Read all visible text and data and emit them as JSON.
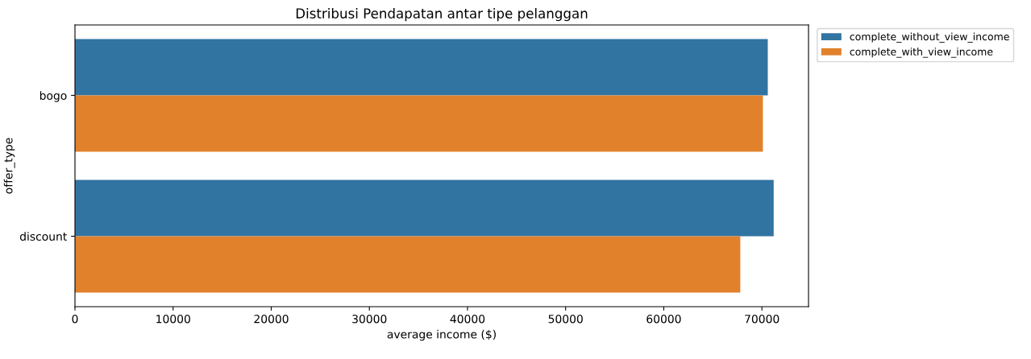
{
  "chart_data": {
    "type": "bar",
    "orientation": "horizontal",
    "title": "Distribusi Pendapatan antar tipe pelanggan",
    "xlabel": "average income ($)",
    "ylabel": "offer_type",
    "categories": [
      "bogo",
      "discount"
    ],
    "series": [
      {
        "name": "complete_without_view_income",
        "color": "#3274a1",
        "values": [
          70600,
          71200
        ]
      },
      {
        "name": "complete_with_view_income",
        "color": "#e1812c",
        "values": [
          70100,
          67800
        ]
      }
    ],
    "xlim": [
      0,
      74750
    ],
    "xticks": [
      0,
      10000,
      20000,
      30000,
      40000,
      50000,
      60000,
      70000
    ],
    "grid": false,
    "legend": "top right outside"
  }
}
